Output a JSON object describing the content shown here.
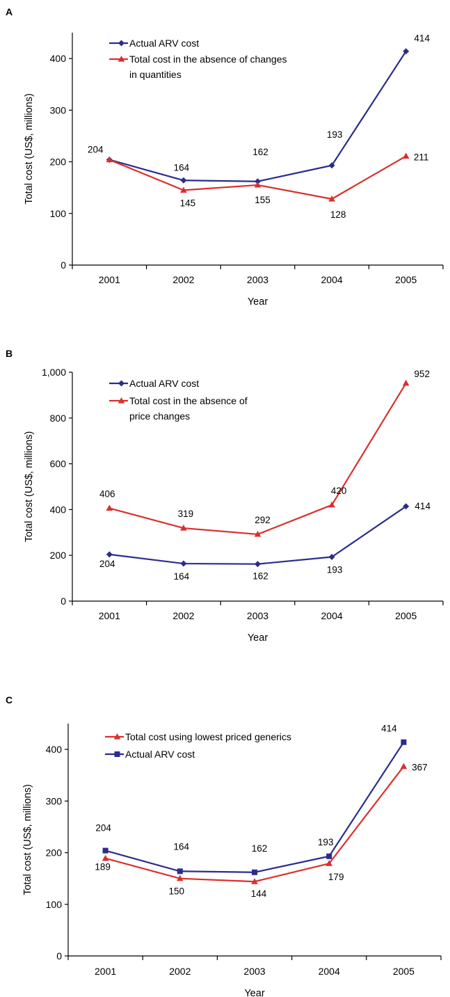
{
  "chart_data": [
    {
      "panel": "A",
      "type": "line",
      "categories": [
        "2001",
        "2002",
        "2003",
        "2004",
        "2005"
      ],
      "xlabel": "Year",
      "ylabel": "Total cost (US$, millions)",
      "ylim": [
        0,
        450
      ],
      "yticks": [
        0,
        100,
        200,
        300,
        400
      ],
      "ytick_labels": [
        "0",
        "100",
        "200",
        "300",
        "400"
      ],
      "legend_position": "top-left",
      "series": [
        {
          "name": "Actual ARV cost",
          "color": "#2b2c8c",
          "marker": "diamond",
          "values": [
            204,
            164,
            162,
            193,
            414
          ],
          "labels": [
            "204",
            "164",
            "162",
            "193",
            "414"
          ]
        },
        {
          "name": "Total cost in the absence of changes in quantities",
          "legend_lines": [
            "Total cost in the absence of changes",
            "in quantities"
          ],
          "color": "#d9302b",
          "marker": "triangle",
          "values": [
            204,
            145,
            155,
            128,
            211
          ],
          "labels": [
            "",
            "145",
            "155",
            "128",
            "211"
          ]
        }
      ]
    },
    {
      "panel": "B",
      "type": "line",
      "categories": [
        "2001",
        "2002",
        "2003",
        "2004",
        "2005"
      ],
      "xlabel": "Year",
      "ylabel": "Total cost (US$, millions)",
      "ylim": [
        0,
        1000
      ],
      "yticks": [
        0,
        200,
        400,
        600,
        800,
        1000
      ],
      "ytick_labels": [
        "0",
        "200",
        "400",
        "600",
        "800",
        "1,000"
      ],
      "legend_position": "top-left",
      "series": [
        {
          "name": "Actual ARV cost",
          "color": "#2b2c8c",
          "marker": "diamond",
          "values": [
            204,
            164,
            162,
            193,
            414
          ],
          "labels": [
            "204",
            "164",
            "162",
            "193",
            "414"
          ]
        },
        {
          "name": "Total cost in the absence of price changes",
          "legend_lines": [
            "Total cost in the absence of",
            "price changes"
          ],
          "color": "#d9302b",
          "marker": "triangle",
          "values": [
            406,
            319,
            292,
            420,
            952
          ],
          "labels": [
            "406",
            "319",
            "292",
            "420",
            "952"
          ]
        }
      ]
    },
    {
      "panel": "C",
      "type": "line",
      "categories": [
        "2001",
        "2002",
        "2003",
        "2004",
        "2005"
      ],
      "xlabel": "Year",
      "ylabel": "Total cost (US$, millions)",
      "ylim": [
        0,
        450
      ],
      "yticks": [
        0,
        100,
        200,
        300,
        400
      ],
      "ytick_labels": [
        "0",
        "100",
        "200",
        "300",
        "400"
      ],
      "legend_position": "top-left",
      "series": [
        {
          "name": "Total cost using lowest priced generics",
          "legend_lines": [
            "Total cost using lowest priced generics"
          ],
          "color": "#d9302b",
          "marker": "triangle",
          "values": [
            189,
            150,
            144,
            179,
            367
          ],
          "labels": [
            "189",
            "150",
            "144",
            "179",
            "367"
          ]
        },
        {
          "name": "Actual ARV cost",
          "color": "#2b2c8c",
          "marker": "square",
          "values": [
            204,
            164,
            162,
            193,
            414
          ],
          "labels": [
            "204",
            "164",
            "162",
            "193",
            "414"
          ]
        }
      ]
    }
  ]
}
